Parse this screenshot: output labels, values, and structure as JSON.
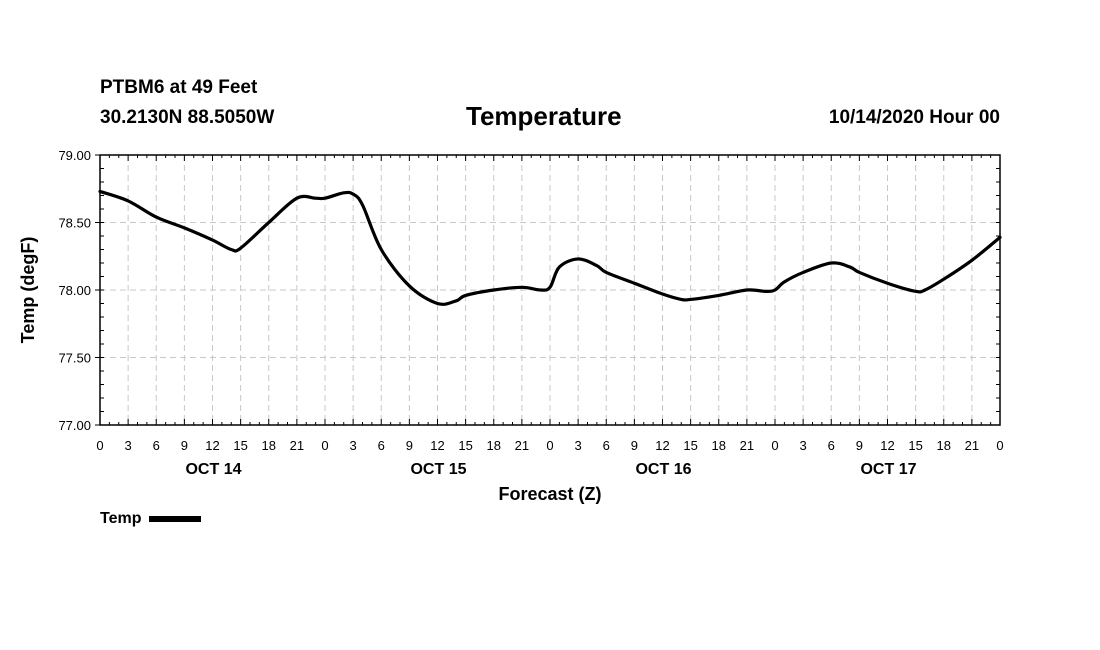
{
  "header": {
    "station": "PTBM6 at 49 Feet",
    "coords": "30.2130N 88.5050W",
    "title": "Temperature",
    "timestamp": "10/14/2020 Hour 00"
  },
  "legend": {
    "label": "Temp",
    "color": "#000000"
  },
  "chart_data": {
    "type": "line",
    "title": "Temperature",
    "xlabel": "Forecast (Z)",
    "ylabel": "Temp (degF)",
    "ylim": [
      77.0,
      79.0
    ],
    "yticks": [
      "79.00",
      "78.50",
      "78.00",
      "77.50",
      "77.00"
    ],
    "xlim": [
      0,
      96
    ],
    "xtick_labels": [
      "0",
      "3",
      "6",
      "9",
      "12",
      "15",
      "18",
      "21",
      "0",
      "3",
      "6",
      "9",
      "12",
      "15",
      "18",
      "21",
      "0",
      "3",
      "6",
      "9",
      "12",
      "15",
      "18",
      "21",
      "0",
      "3",
      "6",
      "9",
      "12",
      "15",
      "18",
      "21",
      "0"
    ],
    "day_labels": [
      {
        "label": "OCT 14",
        "hour": 12
      },
      {
        "label": "OCT 15",
        "hour": 36
      },
      {
        "label": "OCT 16",
        "hour": 60
      },
      {
        "label": "OCT 17",
        "hour": 84
      }
    ],
    "grid": true,
    "series": [
      {
        "name": "Temp",
        "color": "#000000",
        "x": [
          0,
          3,
          6,
          9,
          12,
          14,
          15,
          18,
          21,
          23,
          24,
          26,
          27,
          28,
          30,
          33,
          36,
          38,
          39,
          42,
          45,
          47,
          48,
          49,
          51,
          53,
          54,
          57,
          60,
          62,
          63,
          66,
          69,
          71,
          72,
          73,
          75,
          78,
          80,
          81,
          84,
          87,
          88,
          90,
          93,
          96
        ],
        "y": [
          78.73,
          78.66,
          78.54,
          78.46,
          78.37,
          78.3,
          78.31,
          78.5,
          78.68,
          78.68,
          78.68,
          78.72,
          78.71,
          78.63,
          78.3,
          78.03,
          77.9,
          77.92,
          77.96,
          78.0,
          78.02,
          78.0,
          78.02,
          78.17,
          78.23,
          78.18,
          78.13,
          78.05,
          77.97,
          77.93,
          77.93,
          77.96,
          78.0,
          77.99,
          78.0,
          78.06,
          78.13,
          78.2,
          78.17,
          78.13,
          78.05,
          77.99,
          78.0,
          78.08,
          78.22,
          78.39
        ]
      }
    ]
  }
}
